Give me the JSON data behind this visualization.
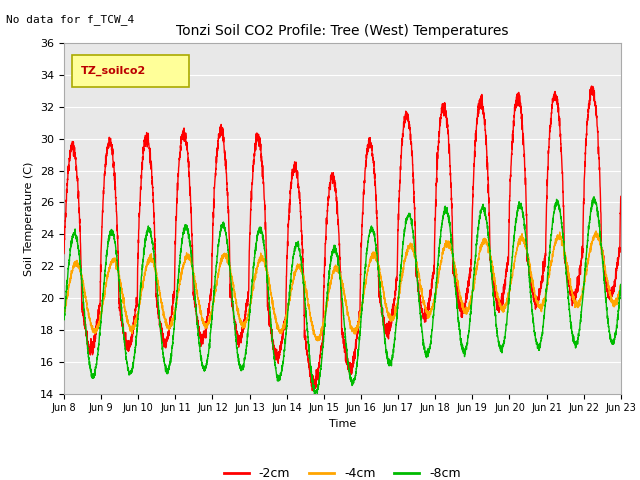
{
  "title": "Tonzi Soil CO2 Profile: Tree (West) Temperatures",
  "no_data_text": "No data for f_TCW_4",
  "legend_box_text": "TZ_soilco2",
  "ylabel": "Soil Temperature (C)",
  "xlabel": "Time",
  "ylim": [
    14,
    36
  ],
  "yticks": [
    14,
    16,
    18,
    20,
    22,
    24,
    26,
    28,
    30,
    32,
    34,
    36
  ],
  "start_day": 8,
  "end_day": 23,
  "colors": {
    "neg2cm": "#ff0000",
    "neg4cm": "#ffa500",
    "neg8cm": "#00bb00"
  },
  "legend_labels": [
    "-2cm",
    "-4cm",
    "-8cm"
  ],
  "bg_color": "#e8e8e8",
  "fig_color": "#ffffff",
  "linewidth": 1.0
}
